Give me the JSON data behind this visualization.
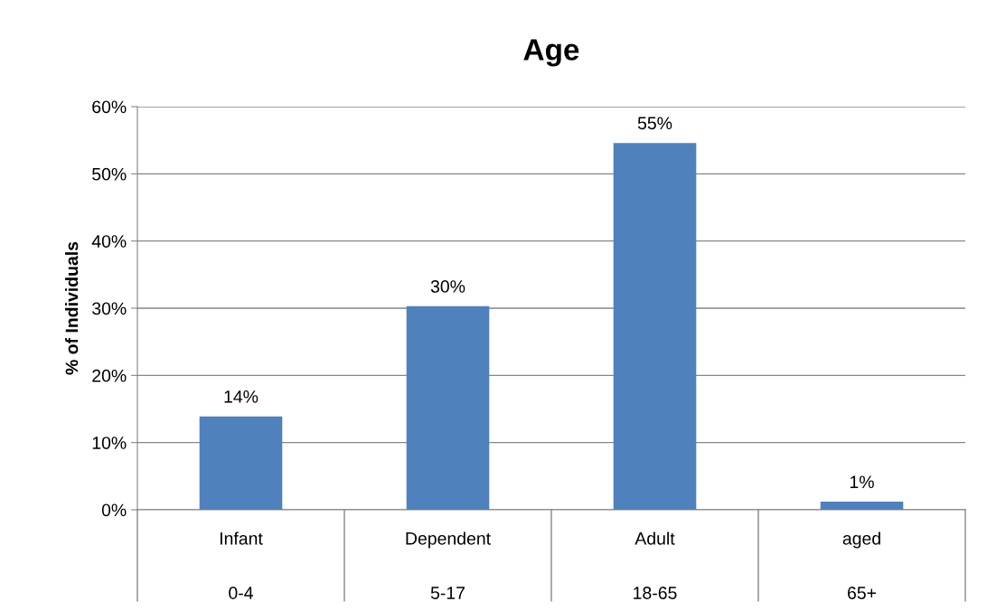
{
  "chart_data": {
    "type": "bar",
    "title": "Age",
    "ylabel": "% of Individuals",
    "categories": [
      "Infant\n0-4",
      "Dependent\n5-17",
      "Adult\n18-65",
      "aged\n65+"
    ],
    "values": [
      13.9,
      30.3,
      54.6,
      1.2
    ],
    "value_labels": [
      "14%",
      "30%",
      "55%",
      "1%"
    ],
    "color": "#4f81bd",
    "ylim": [
      0,
      60
    ],
    "yticks": [
      {
        "value": 0,
        "label": "0%"
      },
      {
        "value": 10,
        "label": "10%"
      },
      {
        "value": 20,
        "label": "20%"
      },
      {
        "value": 30,
        "label": "30%"
      },
      {
        "value": 40,
        "label": "40%"
      },
      {
        "value": 50,
        "label": "50%"
      },
      {
        "value": 60,
        "label": "60%"
      }
    ],
    "grid": "y",
    "legend": false
  }
}
